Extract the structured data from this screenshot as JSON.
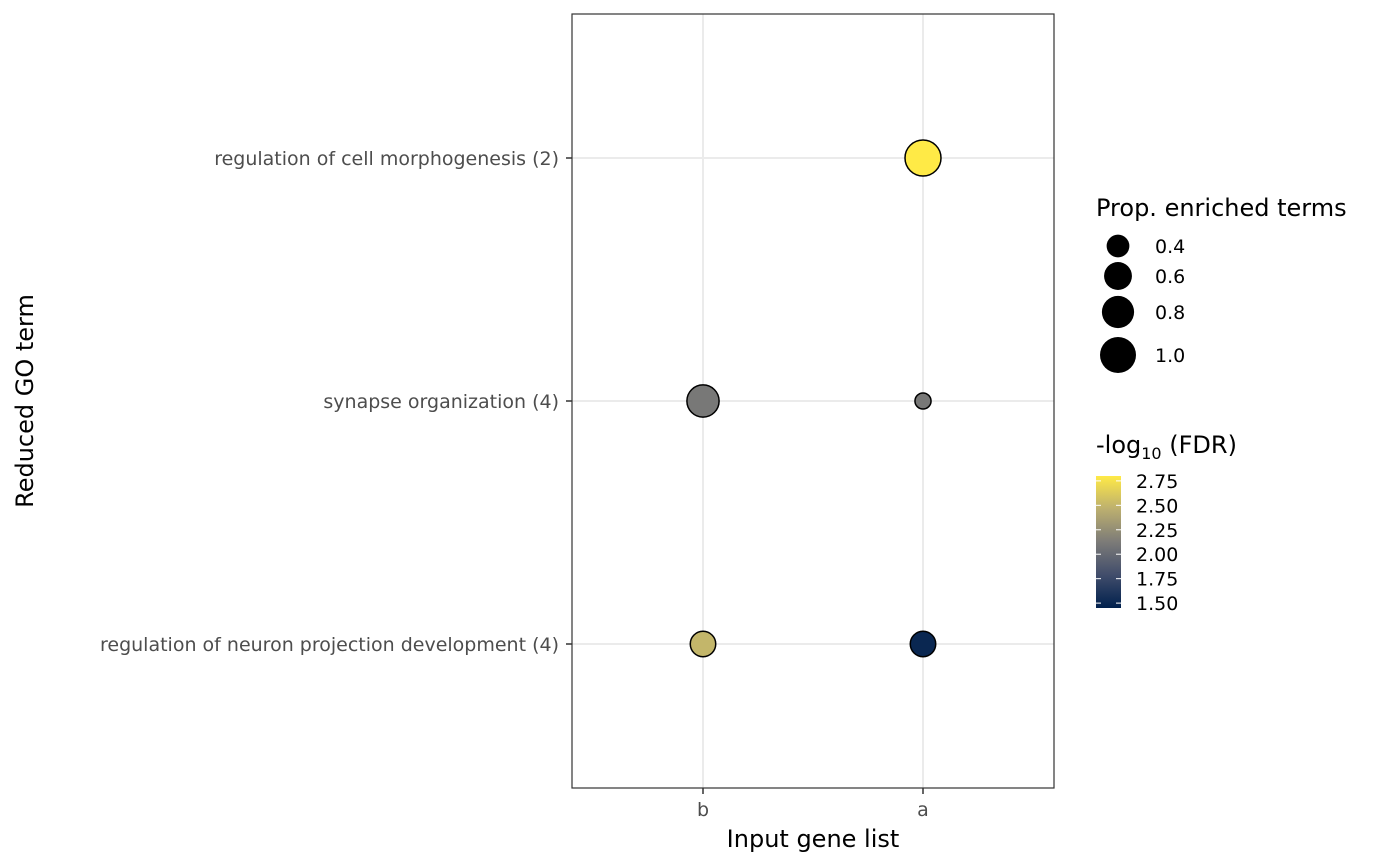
{
  "chart_data": {
    "type": "scatter",
    "xlabel": "Input gene list",
    "ylabel": "Reduced GO term",
    "x_categories": [
      "b",
      "a"
    ],
    "y_categories": [
      "regulation of neuron projection development (4)",
      "synapse organization (4)",
      "regulation of cell morphogenesis (2)"
    ],
    "points": [
      {
        "x": "a",
        "y": "regulation of cell morphogenesis (2)",
        "prop": 1.0,
        "neglog10_fdr": 2.8
      },
      {
        "x": "b",
        "y": "synapse organization (4)",
        "prop": 0.8,
        "neglog10_fdr": 2.1
      },
      {
        "x": "a",
        "y": "synapse organization (4)",
        "prop": 0.2,
        "neglog10_fdr": 2.1
      },
      {
        "x": "b",
        "y": "regulation of neuron projection development (4)",
        "prop": 0.5,
        "neglog10_fdr": 2.5
      },
      {
        "x": "a",
        "y": "regulation of neuron projection development (4)",
        "prop": 0.5,
        "neglog10_fdr": 1.5
      }
    ],
    "grid": true,
    "legend_position": "right",
    "size_legend": {
      "title": "Prop. enriched terms",
      "values": [
        0.4,
        0.6,
        0.8,
        1.0
      ],
      "labels": [
        "0.4",
        "0.6",
        "0.8",
        "1.0"
      ]
    },
    "color_legend": {
      "title_prefix": "-log",
      "title_subscript": "10",
      "title_suffix": " (FDR)",
      "breaks": [
        2.75,
        2.5,
        2.25,
        2.0,
        1.75,
        1.5
      ],
      "labels": [
        "2.75",
        "2.50",
        "2.25",
        "2.00",
        "1.75",
        "1.50"
      ],
      "range": [
        1.45,
        2.8
      ],
      "colormap": "cividis",
      "color_low": "#00204d",
      "color_mid": "#7c7b78",
      "color_high": "#ffea46"
    }
  }
}
